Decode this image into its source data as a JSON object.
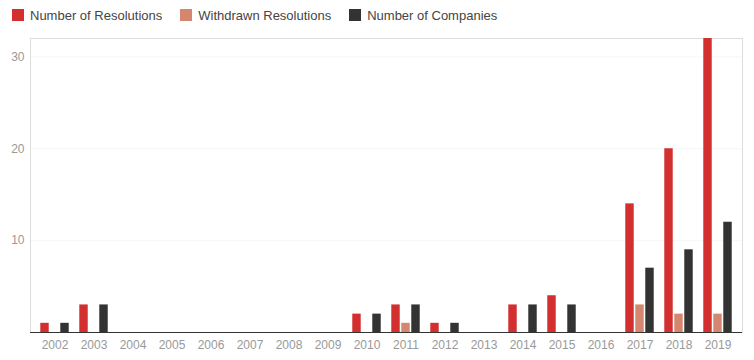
{
  "chart_data": {
    "type": "bar",
    "categories": [
      "2002",
      "2003",
      "2004",
      "2005",
      "2006",
      "2007",
      "2008",
      "2009",
      "2010",
      "2011",
      "2012",
      "2013",
      "2014",
      "2015",
      "2016",
      "2017",
      "2018",
      "2019"
    ],
    "series": [
      {
        "name": "Number of Resolutions",
        "color": "#d32f2f",
        "values": [
          1,
          3,
          0,
          0,
          0,
          0,
          0,
          0,
          2,
          3,
          1,
          0,
          3,
          4,
          0,
          14,
          20,
          32
        ]
      },
      {
        "name": "Withdrawn Resolutions",
        "color": "#d4876e",
        "values": [
          0,
          0,
          0,
          0,
          0,
          0,
          0,
          0,
          0,
          1,
          0,
          0,
          0,
          0,
          0,
          3,
          2,
          2
        ]
      },
      {
        "name": "Number of Companies",
        "color": "#333333",
        "values": [
          1,
          3,
          0,
          0,
          0,
          0,
          0,
          0,
          2,
          3,
          1,
          0,
          3,
          3,
          0,
          7,
          9,
          12
        ]
      }
    ],
    "ylim": [
      0,
      32
    ],
    "yticks": [
      10,
      20,
      30
    ],
    "grid": true,
    "legend": "top-left"
  }
}
